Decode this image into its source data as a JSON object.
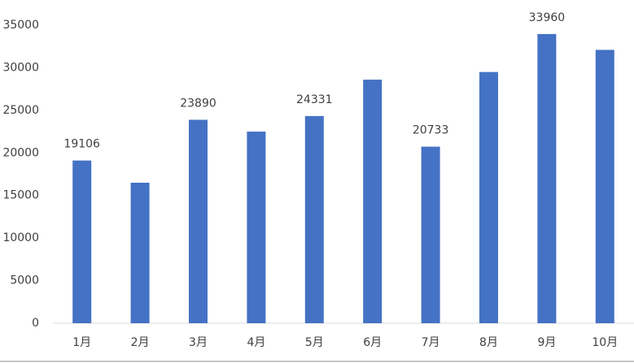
{
  "chart_data": {
    "type": "bar",
    "categories": [
      "1月",
      "2月",
      "3月",
      "4月",
      "5月",
      "6月",
      "7月",
      "8月",
      "9月",
      "10月"
    ],
    "values": [
      19106,
      16500,
      23890,
      22500,
      24331,
      28600,
      20733,
      29500,
      33960,
      32100
    ],
    "value_labels": [
      "19106",
      null,
      "23890",
      null,
      "24331",
      null,
      "20733",
      null,
      "33960",
      null
    ],
    "color": "#4472c4",
    "ylim": [
      0,
      35000
    ],
    "yticks": [
      0,
      5000,
      10000,
      15000,
      20000,
      25000,
      30000,
      35000
    ],
    "grid": false
  }
}
